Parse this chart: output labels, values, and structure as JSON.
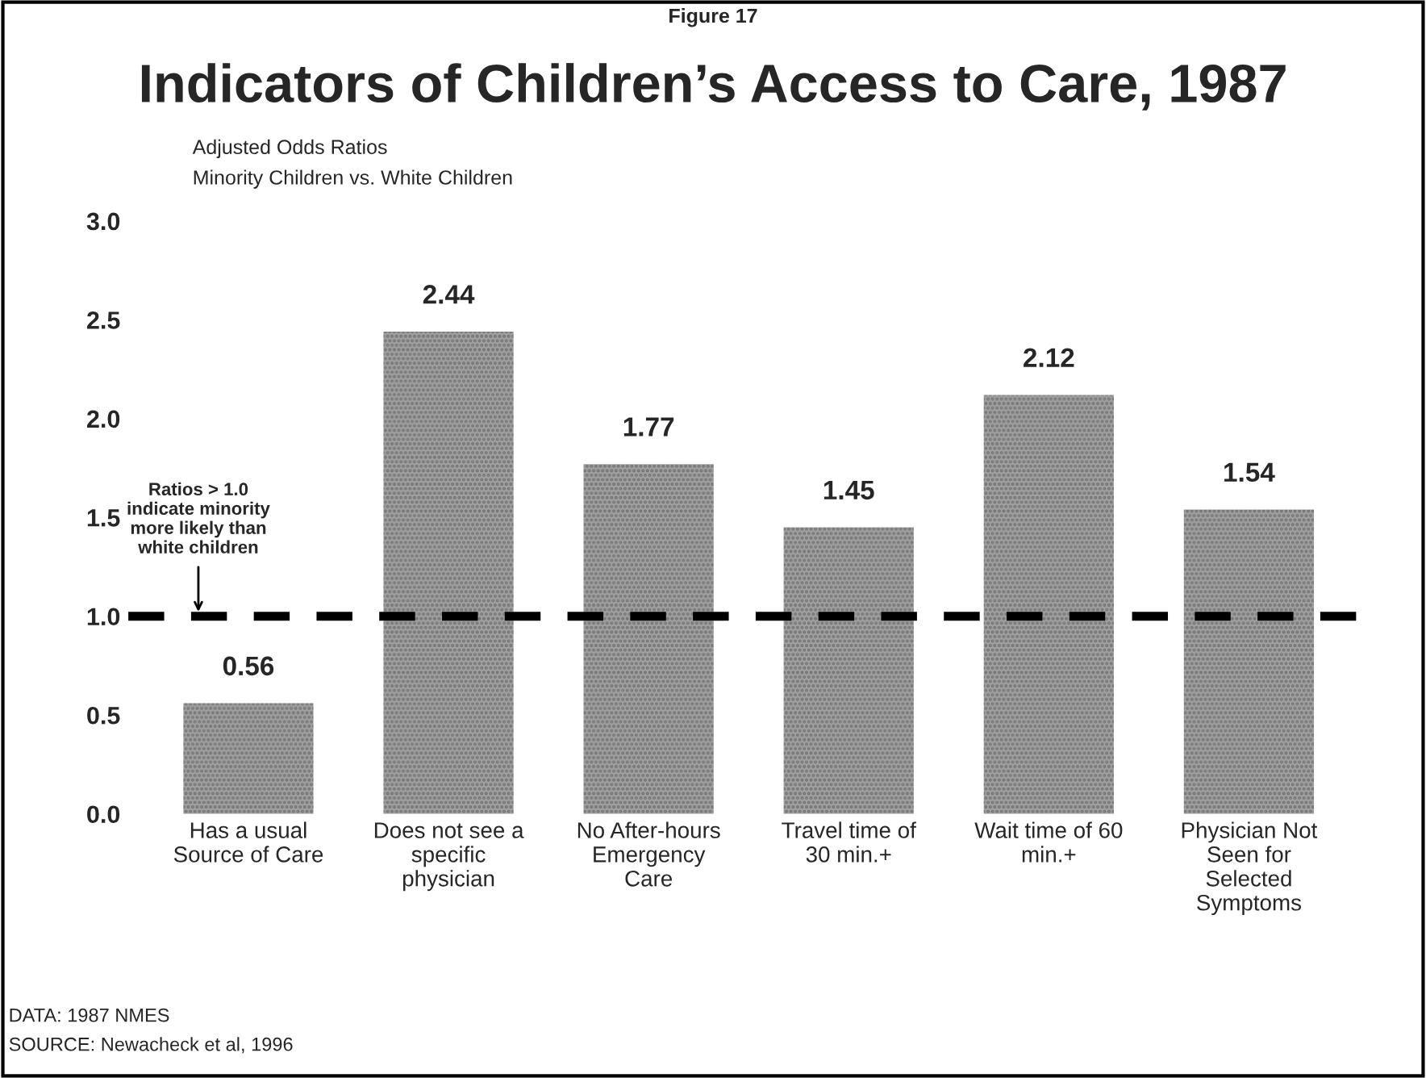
{
  "chart_data": {
    "type": "bar",
    "title": "Indicators of Children’s Access to Care, 1987",
    "subtitle": "Adjusted Odds Ratios\nMinority Children vs. White Children",
    "categories": [
      "Has a usual\nSource of Care",
      "Does not see a\nspecific\nphysician",
      "No After-hours\nEmergency\nCare",
      "Travel time of\n30 min.+",
      "Wait time of 60\nmin.+",
      "Physician Not\nSeen for\nSelected\nSymptoms"
    ],
    "values": [
      0.56,
      2.44,
      1.77,
      1.45,
      2.12,
      1.54
    ],
    "color": "#a0a0a0",
    "ylim": [
      0,
      3
    ],
    "yticks": [
      {
        "value": 0,
        "label": "0.0"
      },
      {
        "value": 0.5,
        "label": "0.5"
      },
      {
        "value": 1,
        "label": "1.0"
      },
      {
        "value": 1.5,
        "label": "1.5"
      },
      {
        "value": 2,
        "label": "2.0"
      },
      {
        "value": 2.5,
        "label": "2.5"
      },
      {
        "value": 3,
        "label": "3.0"
      }
    ],
    "data_labels": true,
    "grid": false,
    "legend": false,
    "ref_lines": [
      {
        "axis": "y",
        "value": 1,
        "label": "Ratios > 1.0\nindicate minority\nmore likely than\nwhite children",
        "color": "#000000",
        "line_style": "dashed"
      }
    ],
    "annotations": [
      "Figure 17",
      "DATA: 1987 NMES",
      "SOURCE: Newacheck et al, 1996"
    ]
  }
}
